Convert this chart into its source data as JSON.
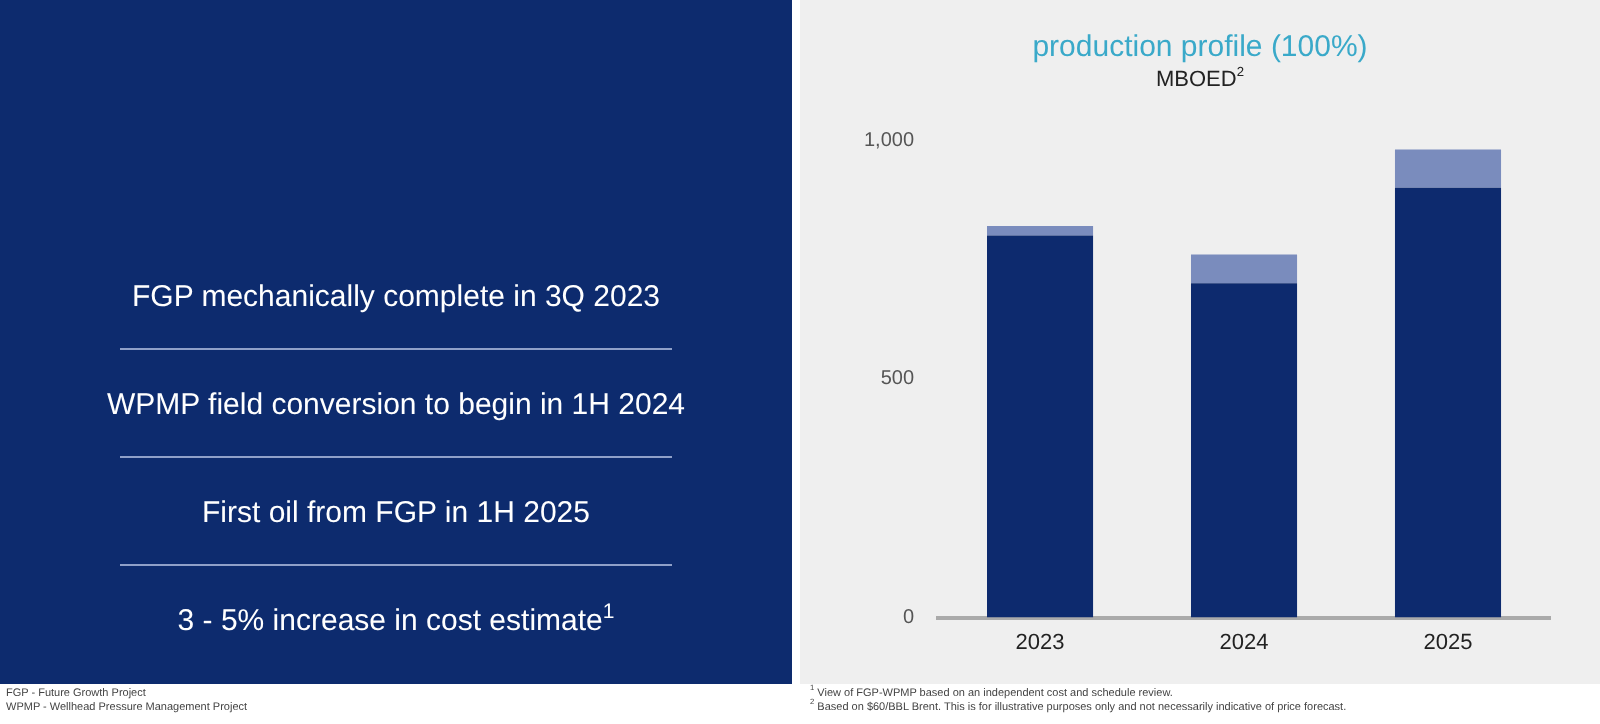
{
  "chart_data": [
    {
      "type": "other",
      "annotations": [
        "FGP mechanically complete in 3Q 2023",
        "WPMP field conversion to begin in 1H 2024",
        "First oil from FGP in 1H 2025",
        "3 - 5% increase in cost estimate$^{1}$"
      ]
    },
    {
      "type": "other",
      "annotations": [
        "FGP - Future Growth Project",
        "WPMP - Wellhead Pressure Management Project"
      ]
    },
    {
      "type": "bar",
      "title": "production profile (100%)",
      "ylabel": "MBOED$^{2}$",
      "categories": [
        "2023",
        "2024",
        "2025"
      ],
      "stacked": true,
      "series": [
        {
          "color": "#0d2a6e",
          "values": [
            800,
            700,
            900
          ]
        },
        {
          "color": "#7a8cbd",
          "values": [
            20,
            60,
            80
          ]
        }
      ],
      "ylim": [
        0,
        1000
      ],
      "yticks": [
        0,
        500,
        {
          "value": 1000,
          "label": "1,000"
        }
      ],
      "grid": false,
      "legend": false,
      "annotations": [
        "$^{1}$ View of FGP-WPMP based on an independent cost and schedule review.",
        "$^{2}$ Based on $60/BBL Brent. This is for illustrative purposes only and not necessarily indicative of price forecast."
      ]
    }
  ]
}
